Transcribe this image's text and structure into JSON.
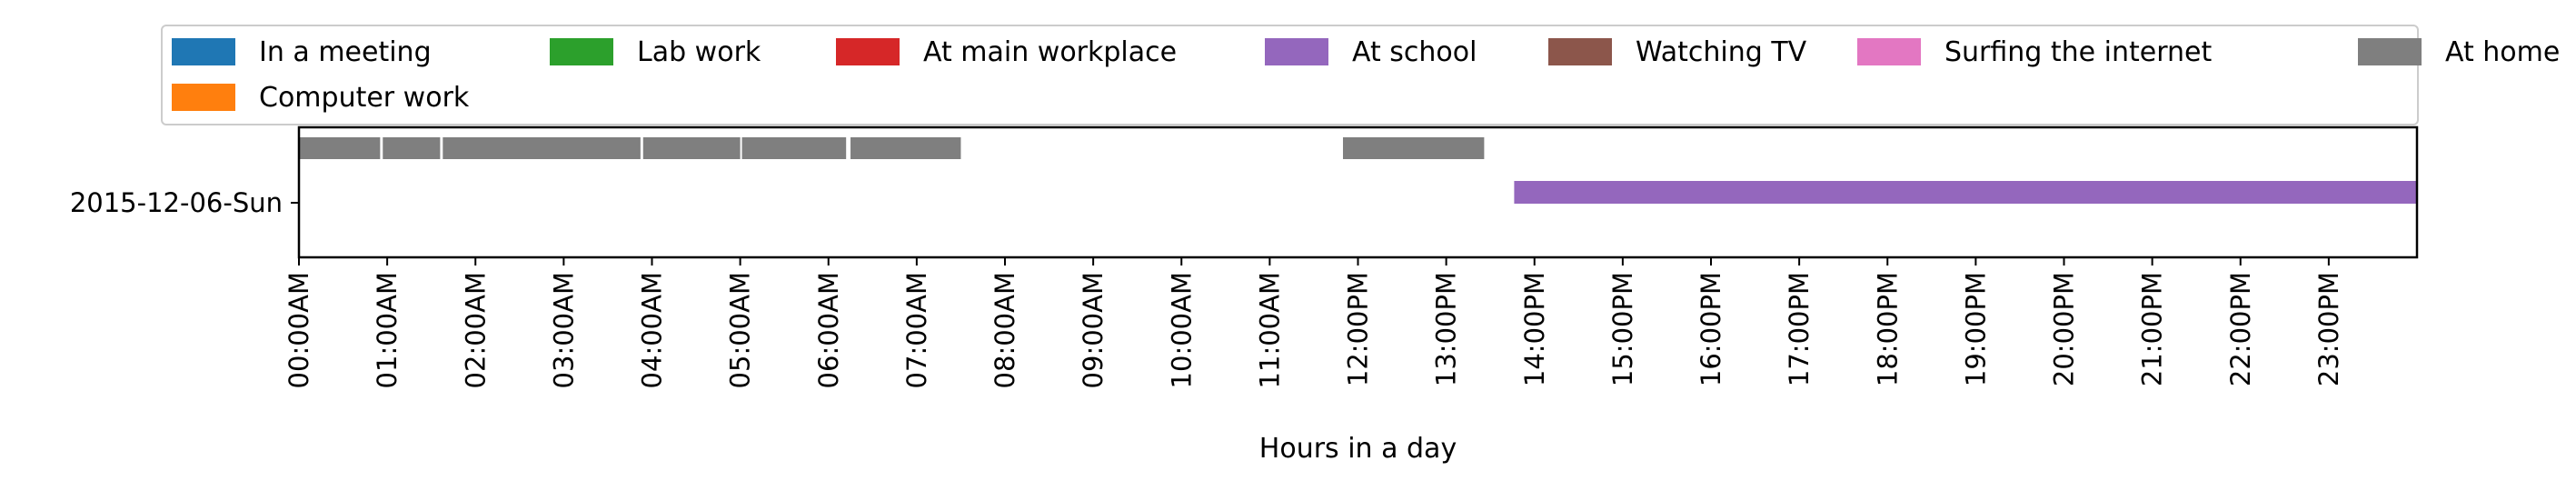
{
  "chart_data": {
    "type": "timeline",
    "xlabel": "Hours in a day",
    "x_range_hours": [
      0,
      24
    ],
    "rows": [
      "2015-12-06-Sun"
    ],
    "x_ticks": [
      "00:00AM",
      "01:00AM",
      "02:00AM",
      "03:00AM",
      "04:00AM",
      "05:00AM",
      "06:00AM",
      "07:00AM",
      "08:00AM",
      "09:00AM",
      "10:00AM",
      "11:00AM",
      "12:00PM",
      "13:00PM",
      "14:00PM",
      "15:00PM",
      "16:00PM",
      "17:00PM",
      "18:00PM",
      "19:00PM",
      "20:00PM",
      "21:00PM",
      "22:00PM",
      "23:00PM"
    ],
    "legend": {
      "placement": "top",
      "entries": [
        {
          "label": "In a meeting",
          "color": "#1f77b4"
        },
        {
          "label": "Computer work",
          "color": "#ff7f0e"
        },
        {
          "label": "Lab work",
          "color": "#2ca02c"
        },
        {
          "label": "At main workplace",
          "color": "#d62728"
        },
        {
          "label": "At school",
          "color": "#9467bd"
        },
        {
          "label": "Watching TV",
          "color": "#8c564b"
        },
        {
          "label": "Surfing the internet",
          "color": "#e377c2"
        },
        {
          "label": "At home",
          "color": "#7f7f7f"
        }
      ]
    },
    "series": [
      {
        "name": "At home",
        "color": "#7f7f7f",
        "lane": "upper",
        "intervals": [
          [
            0.0,
            0.92
          ],
          [
            0.95,
            1.6
          ],
          [
            1.63,
            3.87
          ],
          [
            3.9,
            5.0
          ],
          [
            5.02,
            6.2
          ],
          [
            6.25,
            7.5
          ],
          [
            11.83,
            13.43
          ]
        ]
      },
      {
        "name": "At school",
        "color": "#9467bd",
        "lane": "main",
        "intervals": [
          [
            13.77,
            24.0
          ]
        ]
      }
    ]
  }
}
